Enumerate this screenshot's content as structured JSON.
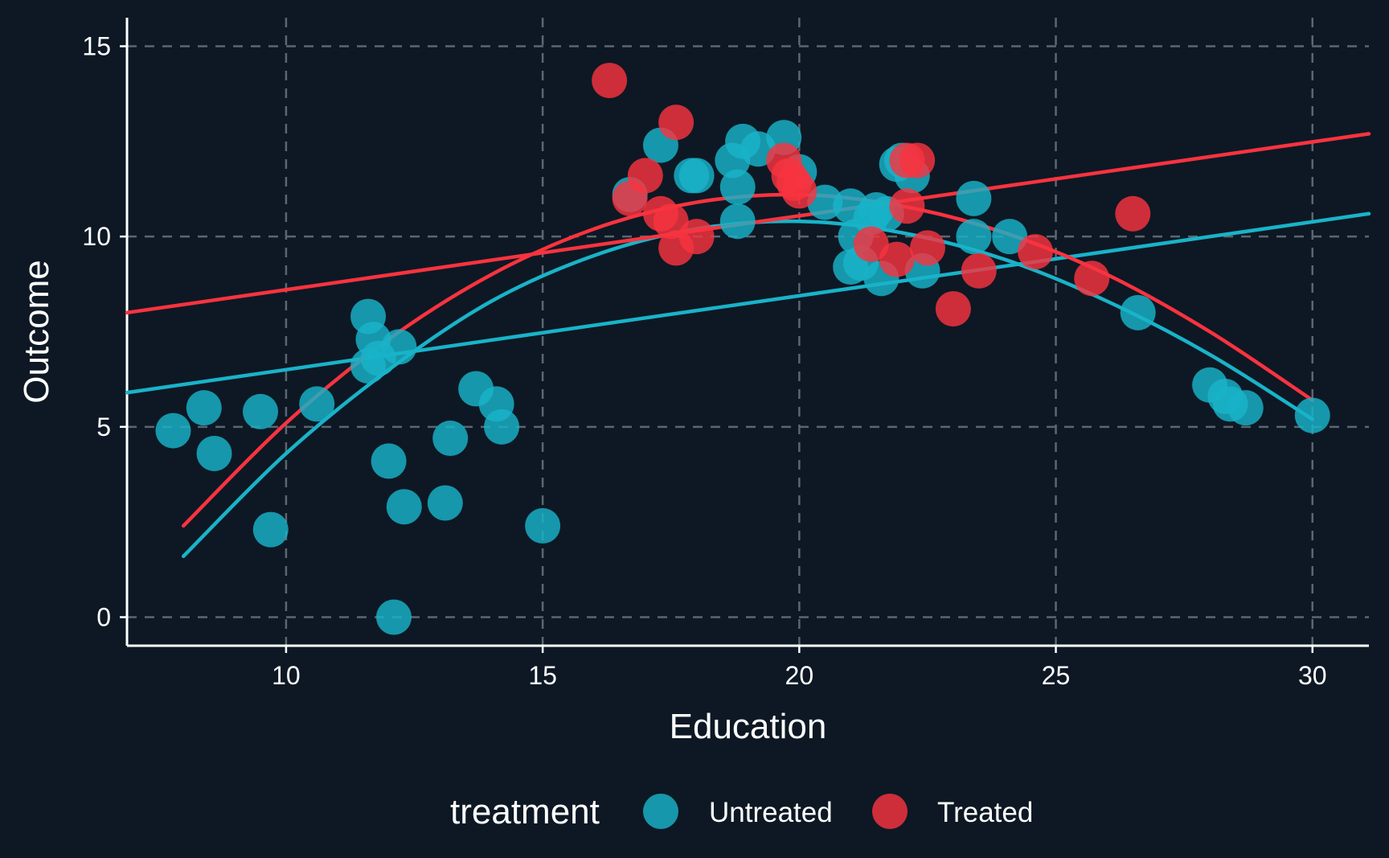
{
  "chart_data": {
    "type": "scatter",
    "xlabel": "Education",
    "ylabel": "Outcome",
    "xlim": [
      6.9,
      31.1
    ],
    "ylim": [
      -0.75,
      15.75
    ],
    "xticks": [
      10,
      15,
      20,
      25,
      30
    ],
    "yticks": [
      0,
      5,
      10,
      15
    ],
    "x_tick_labels": [
      "10",
      "15",
      "20",
      "25",
      "30"
    ],
    "y_tick_labels": [
      "0",
      "5",
      "10",
      "15"
    ],
    "grid": true,
    "grid_style": "dashed",
    "background": "#0d1824",
    "legend": {
      "title": "treatment",
      "position": "bottom",
      "entries": [
        "Untreated",
        "Treated"
      ]
    },
    "series": [
      {
        "name": "Untreated",
        "color": "#19b3c9",
        "points": [
          [
            7.8,
            4.9
          ],
          [
            8.4,
            5.5
          ],
          [
            8.6,
            4.3
          ],
          [
            9.5,
            5.4
          ],
          [
            9.7,
            2.3
          ],
          [
            10.6,
            5.6
          ],
          [
            11.6,
            7.9
          ],
          [
            11.7,
            7.3
          ],
          [
            11.6,
            6.6
          ],
          [
            11.8,
            6.8
          ],
          [
            12.2,
            7.1
          ],
          [
            12.0,
            4.1
          ],
          [
            12.1,
            0.0
          ],
          [
            12.3,
            2.9
          ],
          [
            13.1,
            3.0
          ],
          [
            13.2,
            4.7
          ],
          [
            13.7,
            6.0
          ],
          [
            14.1,
            5.6
          ],
          [
            14.2,
            5.0
          ],
          [
            15.0,
            2.4
          ],
          [
            16.7,
            11.1
          ],
          [
            17.3,
            12.4
          ],
          [
            17.9,
            11.6
          ],
          [
            18.0,
            11.6
          ],
          [
            18.7,
            12.0
          ],
          [
            18.9,
            12.5
          ],
          [
            18.8,
            11.3
          ],
          [
            18.8,
            10.4
          ],
          [
            19.2,
            12.3
          ],
          [
            19.7,
            12.6
          ],
          [
            20.0,
            11.7
          ],
          [
            20.5,
            10.9
          ],
          [
            21.0,
            10.8
          ],
          [
            21.4,
            10.5
          ],
          [
            21.1,
            10.0
          ],
          [
            21.5,
            10.7
          ],
          [
            21.7,
            10.6
          ],
          [
            21.0,
            9.2
          ],
          [
            21.2,
            9.3
          ],
          [
            21.6,
            8.9
          ],
          [
            22.2,
            11.6
          ],
          [
            21.9,
            11.9
          ],
          [
            22.0,
            12.0
          ],
          [
            22.4,
            9.1
          ],
          [
            23.4,
            11.0
          ],
          [
            23.4,
            10.0
          ],
          [
            24.1,
            10.0
          ],
          [
            26.6,
            8.0
          ],
          [
            28.0,
            6.1
          ],
          [
            28.3,
            5.8
          ],
          [
            28.4,
            5.6
          ],
          [
            28.7,
            5.5
          ],
          [
            30.0,
            5.3
          ]
        ],
        "fit_linear": {
          "x": [
            6.9,
            31.1
          ],
          "y": [
            5.9,
            10.6
          ]
        },
        "fit_quadratic": {
          "x": [
            8,
            10,
            12,
            14,
            16,
            18,
            20,
            22,
            24,
            26,
            28,
            30
          ],
          "y": [
            1.6,
            4.3,
            6.5,
            8.3,
            9.5,
            10.2,
            10.4,
            10.1,
            9.4,
            8.3,
            6.9,
            5.2
          ]
        }
      },
      {
        "name": "Treated",
        "color": "#f8333f",
        "points": [
          [
            16.3,
            14.1
          ],
          [
            16.7,
            11.0
          ],
          [
            17.0,
            11.6
          ],
          [
            17.6,
            13.0
          ],
          [
            17.3,
            10.6
          ],
          [
            17.5,
            10.4
          ],
          [
            17.6,
            9.7
          ],
          [
            18.0,
            10.0
          ],
          [
            19.7,
            12.0
          ],
          [
            19.8,
            11.6
          ],
          [
            19.9,
            11.4
          ],
          [
            20.0,
            11.2
          ],
          [
            21.4,
            9.8
          ],
          [
            21.9,
            9.4
          ],
          [
            22.1,
            10.8
          ],
          [
            22.1,
            12.0
          ],
          [
            22.3,
            12.0
          ],
          [
            22.5,
            9.7
          ],
          [
            23.0,
            8.1
          ],
          [
            23.5,
            9.1
          ],
          [
            24.6,
            9.6
          ],
          [
            25.7,
            8.9
          ],
          [
            26.5,
            10.6
          ]
        ],
        "fit_linear": {
          "x": [
            6.9,
            31.1
          ],
          "y": [
            8.0,
            12.7
          ]
        },
        "fit_quadratic": {
          "x": [
            8,
            10,
            12,
            14,
            16,
            18,
            20,
            22,
            24,
            26,
            28,
            30
          ],
          "y": [
            2.4,
            5.1,
            7.3,
            9.0,
            10.2,
            10.9,
            11.1,
            10.8,
            10.1,
            9.0,
            7.5,
            5.7
          ]
        }
      }
    ]
  }
}
